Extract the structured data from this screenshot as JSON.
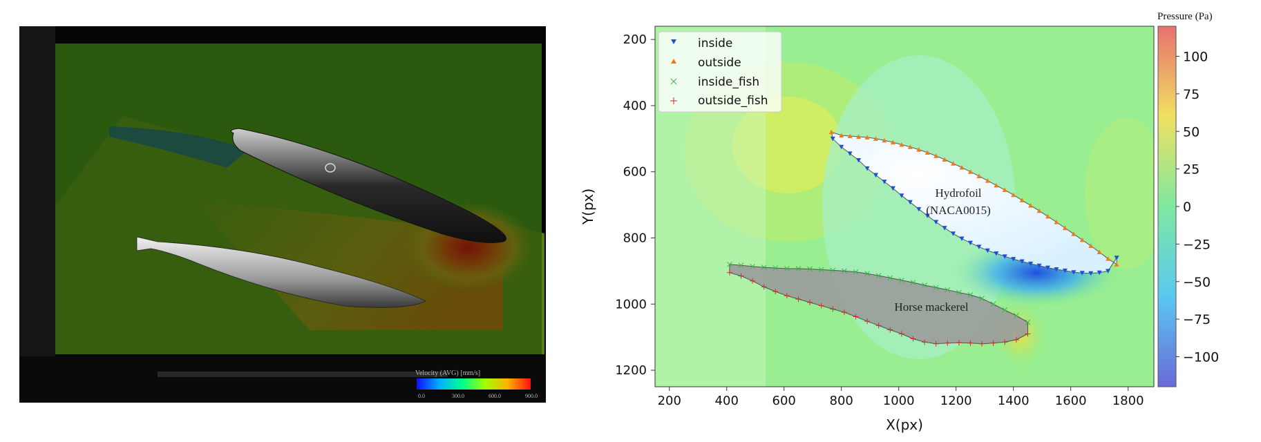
{
  "left_panel": {
    "velocity_legend": {
      "title": "Velocity (AVG) [mm/s]",
      "tick_labels": [
        "0.0",
        "300.0",
        "600.0",
        "900.0"
      ],
      "range": [
        0,
        900
      ]
    }
  },
  "chart_data": {
    "type": "scatter",
    "xlabel": "X(px)",
    "ylabel": "Y(px)",
    "xlim": [
      150,
      1890
    ],
    "ylim": [
      1250,
      160
    ],
    "y_inverted": true,
    "x_ticks": [
      200,
      400,
      600,
      800,
      1000,
      1200,
      1400,
      1600,
      1800
    ],
    "y_ticks": [
      200,
      400,
      600,
      800,
      1000,
      1200
    ],
    "grid": false,
    "legend_position": "top-left",
    "legend": [
      "inside",
      "outside",
      "inside_fish",
      "outside_fish"
    ],
    "annotations": {
      "hydrofoil_line1": "Hydrofoil",
      "hydrofoil_line2": "(NACA0015)",
      "fish": "Horse mackerel"
    },
    "colorbar": {
      "label": "Pressure (Pa)",
      "ticks": [
        100,
        75,
        50,
        25,
        0,
        -25,
        -50,
        -75,
        -100
      ],
      "range": [
        -120,
        120
      ]
    },
    "series": [
      {
        "name": "inside",
        "marker": "triangle-down",
        "color": "#1f4fd6",
        "x": [
          770,
          800,
          830,
          860,
          890,
          920,
          950,
          980,
          1010,
          1040,
          1070,
          1100,
          1130,
          1160,
          1190,
          1220,
          1250,
          1280,
          1310,
          1340,
          1370,
          1400,
          1430,
          1460,
          1490,
          1520,
          1550,
          1580,
          1610,
          1640,
          1670,
          1700,
          1730,
          1760
        ],
        "y": [
          500,
          525,
          545,
          565,
          590,
          610,
          630,
          650,
          672,
          692,
          713,
          733,
          752,
          770,
          787,
          802,
          815,
          827,
          838,
          847,
          856,
          864,
          871,
          878,
          884,
          890,
          895,
          899,
          904,
          906,
          907,
          905,
          900,
          860
        ]
      },
      {
        "name": "outside",
        "marker": "triangle-up",
        "color": "#f07a1a",
        "x": [
          765,
          800,
          830,
          860,
          890,
          920,
          950,
          980,
          1010,
          1040,
          1070,
          1100,
          1130,
          1160,
          1190,
          1220,
          1250,
          1280,
          1310,
          1340,
          1370,
          1400,
          1430,
          1460,
          1490,
          1520,
          1550,
          1580,
          1610,
          1640,
          1670,
          1700,
          1730,
          1760
        ],
        "y": [
          480,
          490,
          492,
          494,
          496,
          500,
          505,
          511,
          518,
          525,
          533,
          542,
          552,
          563,
          575,
          587,
          600,
          613,
          627,
          641,
          655,
          670,
          686,
          702,
          718,
          735,
          752,
          770,
          788,
          806,
          824,
          843,
          863,
          880
        ]
      },
      {
        "name": "inside_fish",
        "marker": "x",
        "color": "#3cb44b",
        "x": [
          410,
          450,
          490,
          530,
          570,
          610,
          650,
          690,
          730,
          770,
          810,
          850,
          890,
          930,
          970,
          1010,
          1050,
          1090,
          1130,
          1170,
          1210,
          1250,
          1290,
          1330,
          1370,
          1410,
          1450
        ],
        "y": [
          880,
          883,
          886,
          889,
          891,
          893,
          893,
          894,
          896,
          898,
          900,
          903,
          908,
          914,
          921,
          928,
          935,
          943,
          950,
          957,
          965,
          972,
          983,
          1000,
          1018,
          1035,
          1055
        ]
      },
      {
        "name": "outside_fish",
        "marker": "plus",
        "color": "#d62728",
        "x": [
          410,
          450,
          490,
          530,
          570,
          610,
          650,
          690,
          730,
          770,
          810,
          850,
          890,
          930,
          970,
          1010,
          1050,
          1090,
          1130,
          1170,
          1210,
          1250,
          1290,
          1330,
          1370,
          1410,
          1450
        ],
        "y": [
          905,
          915,
          930,
          948,
          962,
          975,
          985,
          995,
          1005,
          1015,
          1025,
          1038,
          1052,
          1065,
          1078,
          1090,
          1105,
          1115,
          1120,
          1118,
          1117,
          1118,
          1120,
          1118,
          1115,
          1108,
          1090
        ]
      }
    ]
  }
}
